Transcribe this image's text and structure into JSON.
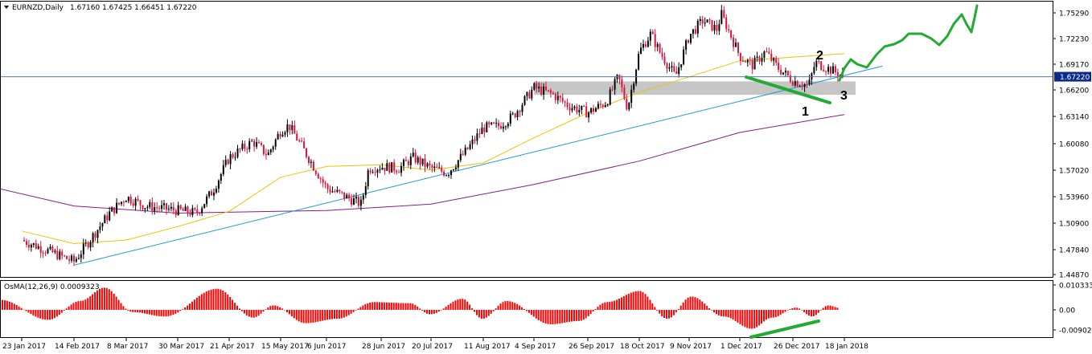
{
  "colors": {
    "background": "#ffffff",
    "frame": "#000000",
    "bull_candle": "#000000",
    "bear_candle": "#dc143c",
    "ma_fast": "#f2c200",
    "ma_slow": "#8b1a8b",
    "trendline": "#1e9bd7",
    "current_price_line": "#5577aa",
    "current_price_tag": "#0b2a8c",
    "zone_fill": "#c0c0c0",
    "drawing_green": "#22aa33",
    "histogram_red": "#ff0000"
  },
  "icons": {
    "header_marker": "triangle-down-icon"
  },
  "chart_data": [
    {
      "type": "candlestick",
      "symbol_label": "EURNZD,Daily",
      "ohlc_readout": "1.67160 1.67425 1.66451 1.67220",
      "ylim": [
        1.4488,
        1.756
      ],
      "yticks": [
        "1.75290",
        "1.72230",
        "1.69170",
        "1.66200",
        "1.63140",
        "1.60080",
        "1.57020",
        "1.53960",
        "1.50900",
        "1.47840",
        "1.44870"
      ],
      "xticks": [
        "23 Jan 2017",
        "14 Feb 2017",
        "8 Mar 2017",
        "30 Mar 2017",
        "21 Apr 2017",
        "15 May 2017",
        "6 Jun 2017",
        "28 Jun 2017",
        "20 Jul 2017",
        "11 Aug 2017",
        "4 Sep 2017",
        "26 Sep 2017",
        "18 Oct 2017",
        "9 Nov 2017",
        "1 Dec 2017",
        "26 Dec 2017",
        "18 Jan 2018"
      ],
      "current_price": "1.67220",
      "close_path": [
        {
          "date": "23 Jan 2017",
          "price": 1.49
        },
        {
          "date": "14 Feb 2017",
          "price": 1.466
        },
        {
          "date": "1 Mar 2017",
          "price": 1.52
        },
        {
          "date": "8 Mar 2017",
          "price": 1.538
        },
        {
          "date": "16 Mar 2017",
          "price": 1.528
        },
        {
          "date": "30 Mar 2017",
          "price": 1.523
        },
        {
          "date": "7 Apr 2017",
          "price": 1.52
        },
        {
          "date": "14 Apr 2017",
          "price": 1.545
        },
        {
          "date": "21 Apr 2017",
          "price": 1.582
        },
        {
          "date": "2 May 2017",
          "price": 1.6
        },
        {
          "date": "9 May 2017",
          "price": 1.585
        },
        {
          "date": "15 May 2017",
          "price": 1.612
        },
        {
          "date": "19 May 2017",
          "price": 1.618
        },
        {
          "date": "25 May 2017",
          "price": 1.595
        },
        {
          "date": "6 Jun 2017",
          "price": 1.548
        },
        {
          "date": "14 Jun 2017",
          "price": 1.538
        },
        {
          "date": "20 Jun 2017",
          "price": 1.53
        },
        {
          "date": "23 Jun 2017",
          "price": 1.57
        },
        {
          "date": "28 Jun 2017",
          "price": 1.572
        },
        {
          "date": "6 Jul 2017",
          "price": 1.57
        },
        {
          "date": "12 Jul 2017",
          "price": 1.582
        },
        {
          "date": "20 Jul 2017",
          "price": 1.57
        },
        {
          "date": "27 Jul 2017",
          "price": 1.565
        },
        {
          "date": "4 Aug 2017",
          "price": 1.59
        },
        {
          "date": "11 Aug 2017",
          "price": 1.615
        },
        {
          "date": "18 Aug 2017",
          "price": 1.617
        },
        {
          "date": "25 Aug 2017",
          "price": 1.628
        },
        {
          "date": "4 Sep 2017",
          "price": 1.66
        },
        {
          "date": "12 Sep 2017",
          "price": 1.652
        },
        {
          "date": "18 Sep 2017",
          "price": 1.64
        },
        {
          "date": "26 Sep 2017",
          "price": 1.632
        },
        {
          "date": "4 Oct 2017",
          "price": 1.644
        },
        {
          "date": "9 Oct 2017",
          "price": 1.672
        },
        {
          "date": "13 Oct 2017",
          "price": 1.637
        },
        {
          "date": "18 Oct 2017",
          "price": 1.7
        },
        {
          "date": "23 Oct 2017",
          "price": 1.72
        },
        {
          "date": "27 Oct 2017",
          "price": 1.7
        },
        {
          "date": "3 Nov 2017",
          "price": 1.672
        },
        {
          "date": "9 Nov 2017",
          "price": 1.718
        },
        {
          "date": "15 Nov 2017",
          "price": 1.735
        },
        {
          "date": "21 Nov 2017",
          "price": 1.725
        },
        {
          "date": "23 Nov 2017",
          "price": 1.742
        },
        {
          "date": "1 Dec 2017",
          "price": 1.695
        },
        {
          "date": "7 Dec 2017",
          "price": 1.685
        },
        {
          "date": "13 Dec 2017",
          "price": 1.7
        },
        {
          "date": "19 Dec 2017",
          "price": 1.682
        },
        {
          "date": "26 Dec 2017",
          "price": 1.668
        },
        {
          "date": "2 Jan 2018",
          "price": 1.662
        },
        {
          "date": "5 Jan 2018",
          "price": 1.688
        },
        {
          "date": "12 Jan 2018",
          "price": 1.68
        },
        {
          "date": "18 Jan 2018",
          "price": 1.672
        }
      ],
      "moving_average_fast": [
        {
          "date": "23 Jan 2017",
          "price": 1.5
        },
        {
          "date": "14 Feb 2017",
          "price": 1.486
        },
        {
          "date": "8 Mar 2017",
          "price": 1.49
        },
        {
          "date": "30 Mar 2017",
          "price": 1.505
        },
        {
          "date": "21 Apr 2017",
          "price": 1.522
        },
        {
          "date": "15 May 2017",
          "price": 1.56
        },
        {
          "date": "6 Jun 2017",
          "price": 1.572
        },
        {
          "date": "28 Jun 2017",
          "price": 1.574
        },
        {
          "date": "20 Jul 2017",
          "price": 1.568
        },
        {
          "date": "11 Aug 2017",
          "price": 1.576
        },
        {
          "date": "4 Sep 2017",
          "price": 1.604
        },
        {
          "date": "26 Sep 2017",
          "price": 1.632
        },
        {
          "date": "18 Oct 2017",
          "price": 1.655
        },
        {
          "date": "9 Nov 2017",
          "price": 1.672
        },
        {
          "date": "1 Dec 2017",
          "price": 1.69
        },
        {
          "date": "18 Jan 2018",
          "price": 1.698
        }
      ],
      "moving_average_slow": [
        {
          "date": "1 Jan 2017",
          "price": 1.555
        },
        {
          "date": "14 Feb 2017",
          "price": 1.528
        },
        {
          "date": "30 Mar 2017",
          "price": 1.52
        },
        {
          "date": "6 Jun 2017",
          "price": 1.523
        },
        {
          "date": "20 Jul 2017",
          "price": 1.53
        },
        {
          "date": "4 Sep 2017",
          "price": 1.552
        },
        {
          "date": "18 Oct 2017",
          "price": 1.578
        },
        {
          "date": "1 Dec 2017",
          "price": 1.61
        },
        {
          "date": "18 Jan 2018",
          "price": 1.63
        }
      ],
      "trendline": [
        {
          "date": "14 Feb 2017",
          "price": 1.462
        },
        {
          "date": "4 Feb 2018",
          "price": 1.684
        }
      ],
      "zone": {
        "from_date": "4 Sep 2017",
        "to_date": "23 Jan 2018",
        "price_high": 1.667,
        "price_low": 1.652
      },
      "annotations": [
        "1",
        "2",
        "3"
      ]
    },
    {
      "type": "histogram",
      "label": "OsMA(12,26,9) 0.0009323",
      "yticks": [
        "0.010333",
        "0.00",
        "-0.009020"
      ],
      "ylim": [
        -0.013,
        0.011
      ]
    }
  ]
}
